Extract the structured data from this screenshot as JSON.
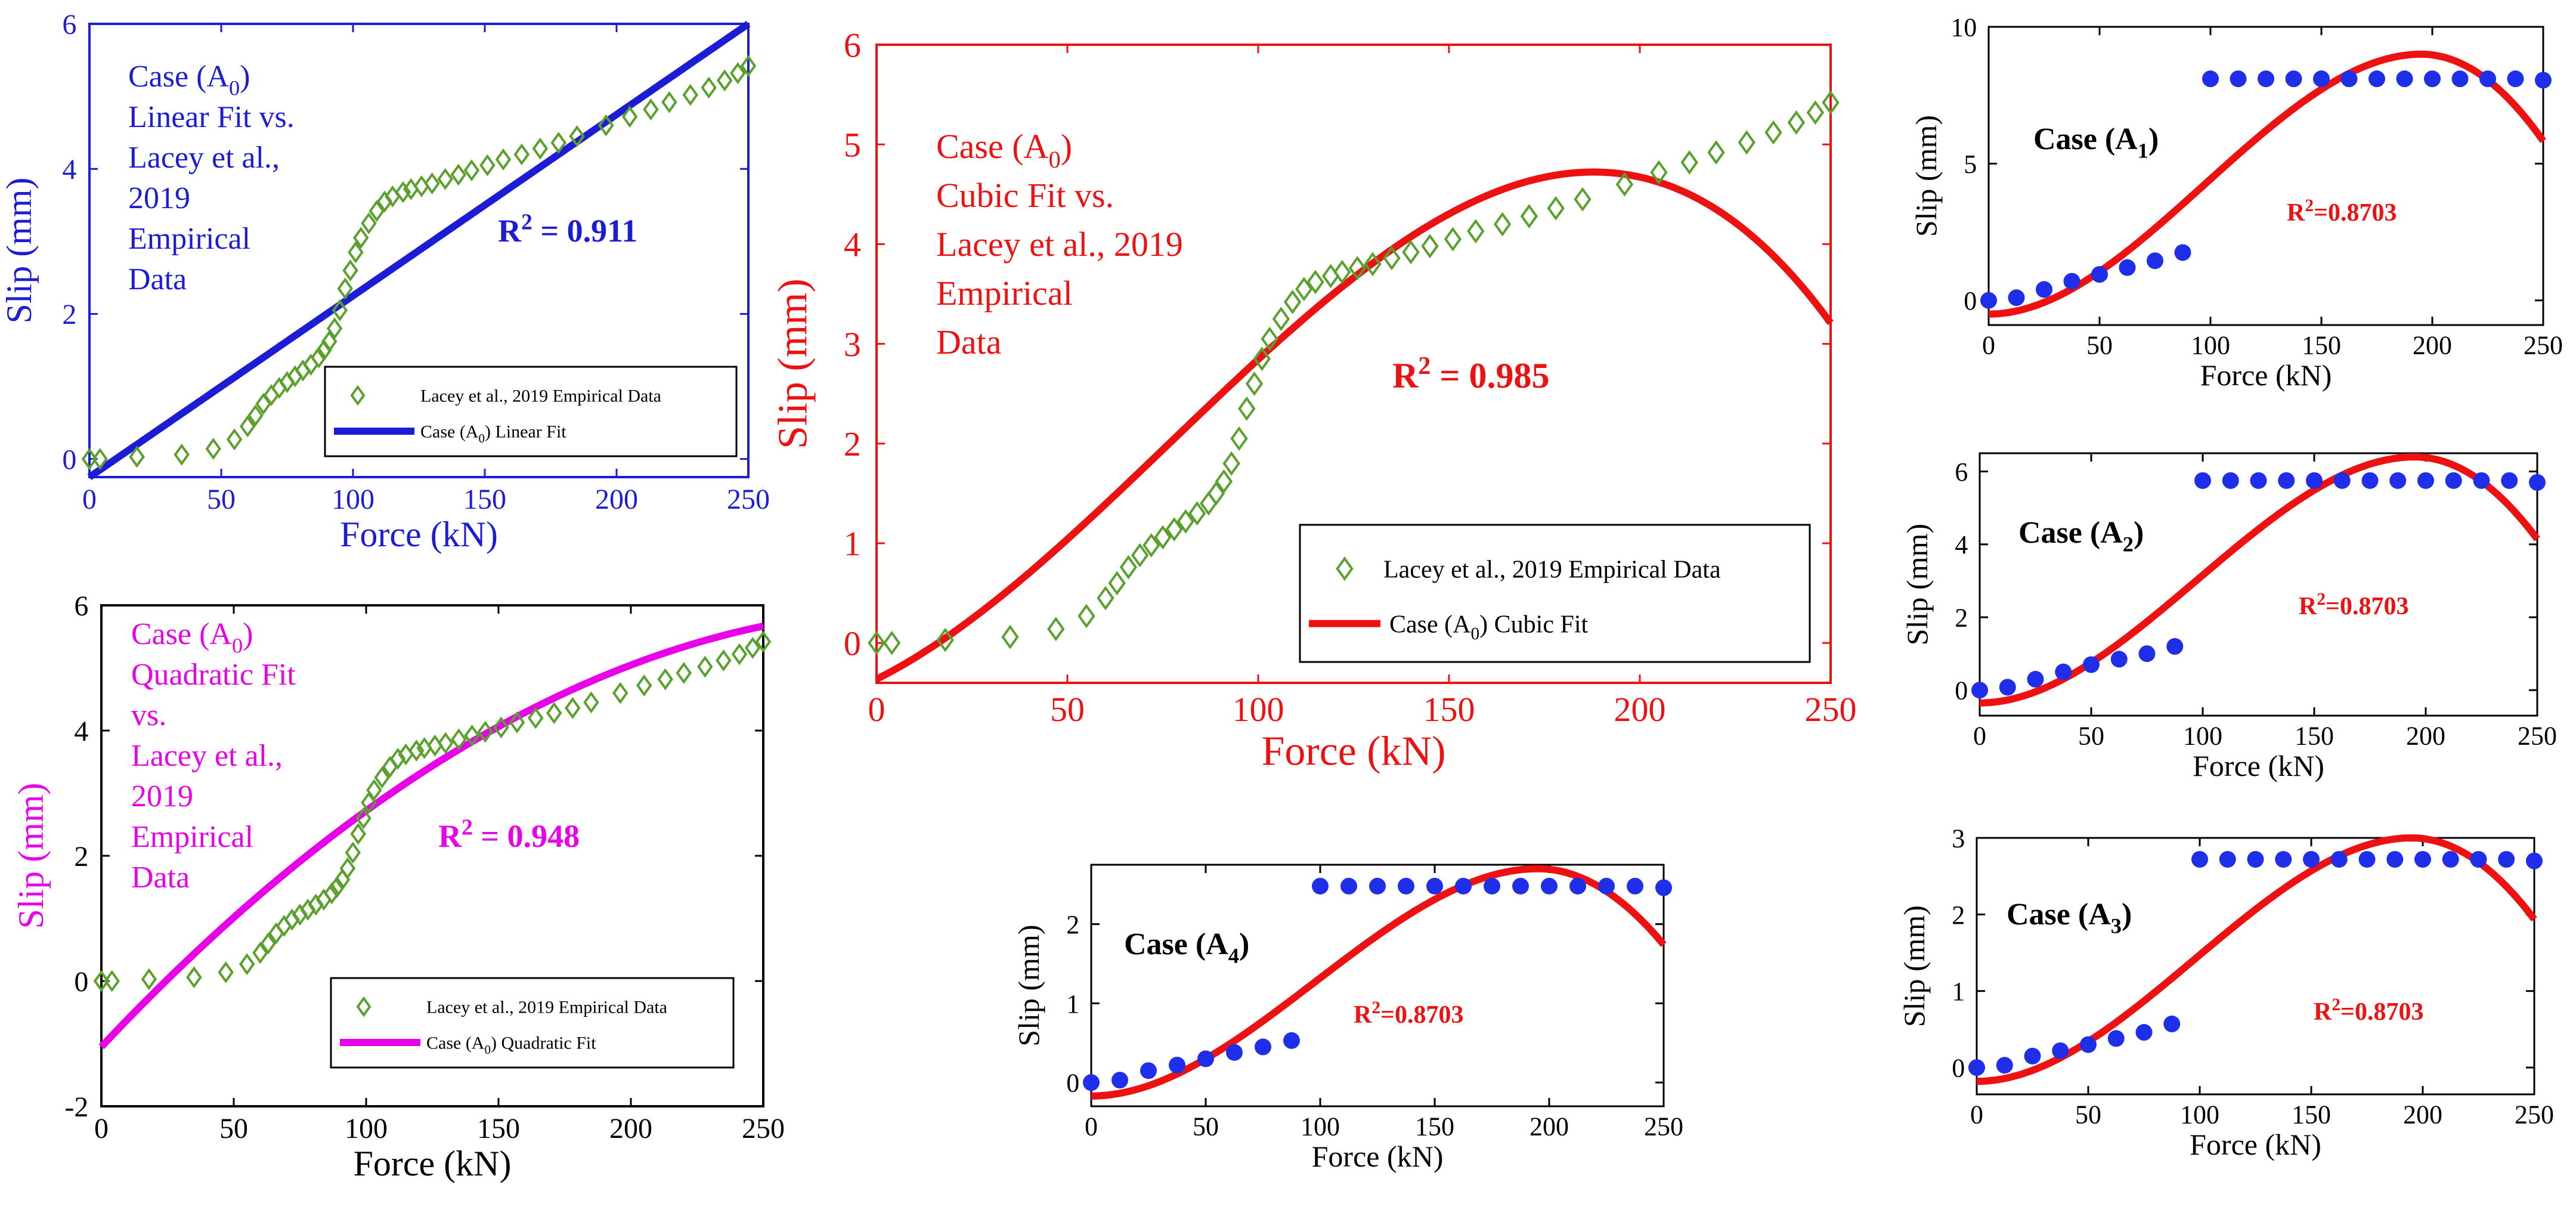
{
  "chart_data": [
    {
      "id": "linear",
      "type": "scatter+line",
      "theme": "#1c1cd6",
      "title": "",
      "xlabel": "Force (kN)",
      "ylabel": "Slip (mm)",
      "xlim": [
        0,
        250
      ],
      "ylim": [
        -0.25,
        6
      ],
      "xticks": [
        0,
        50,
        100,
        150,
        200,
        250
      ],
      "yticks": [
        0,
        2,
        4,
        6
      ],
      "annotation_lines": [
        "Case (A0)",
        "Linear Fit vs.",
        "Lacey et al.,",
        "2019",
        "Empirical",
        "Data"
      ],
      "r2_text": "R2 = 0.911",
      "legend": [
        "Lacey et al., 2019 Empirical Data",
        "Case (A0) Linear Fit"
      ],
      "fit": {
        "kind": "linear",
        "x_start": 0,
        "x_end": 250,
        "y_start": -0.25,
        "y_end": 6
      },
      "empirical": {
        "x": [
          0,
          4,
          18,
          35,
          47,
          55,
          60,
          63,
          66,
          69,
          72,
          75,
          78,
          81,
          84,
          87,
          89,
          91,
          93,
          95,
          97,
          99,
          101,
          103,
          106,
          109,
          112,
          115,
          119,
          122,
          126,
          130,
          135,
          140,
          145,
          151,
          157,
          164,
          171,
          178,
          185,
          196,
          205,
          213,
          220,
          228,
          235,
          241,
          246,
          250
        ],
        "y": [
          0,
          0,
          0.03,
          0.06,
          0.14,
          0.27,
          0.45,
          0.6,
          0.76,
          0.88,
          0.98,
          1.06,
          1.14,
          1.22,
          1.3,
          1.4,
          1.5,
          1.62,
          1.8,
          2.05,
          2.35,
          2.6,
          2.85,
          3.05,
          3.25,
          3.42,
          3.55,
          3.62,
          3.68,
          3.72,
          3.76,
          3.8,
          3.86,
          3.92,
          3.98,
          4.05,
          4.13,
          4.2,
          4.28,
          4.36,
          4.45,
          4.6,
          4.72,
          4.82,
          4.92,
          5.02,
          5.12,
          5.22,
          5.32,
          5.42
        ]
      }
    },
    {
      "id": "quadratic",
      "type": "scatter+line",
      "theme": "#e800e8",
      "title": "",
      "xlabel": "Force (kN)",
      "ylabel": "Slip (mm)",
      "xlim": [
        0,
        250
      ],
      "ylim": [
        -2,
        6
      ],
      "xticks": [
        0,
        50,
        100,
        150,
        200,
        250
      ],
      "yticks": [
        -2,
        0,
        2,
        4,
        6
      ],
      "annotation_lines": [
        "Case (A0)",
        "Quadratic Fit",
        "vs.",
        "Lacey et al.,",
        "2019",
        "Empirical",
        "Data"
      ],
      "r2_text": "R2 = 0.948",
      "legend": [
        "Lacey et al., 2019 Empirical Data",
        "Case (A0)  Quadratic Fit"
      ],
      "fit": {
        "kind": "poly",
        "coef": [
          -1.05,
          0.0449,
          -7.21e-05
        ]
      },
      "empirical": {
        "x": [
          0,
          4,
          18,
          35,
          47,
          55,
          60,
          63,
          66,
          69,
          72,
          75,
          78,
          81,
          84,
          87,
          89,
          91,
          93,
          95,
          97,
          99,
          101,
          103,
          106,
          109,
          112,
          115,
          119,
          122,
          126,
          130,
          135,
          140,
          145,
          151,
          157,
          164,
          171,
          178,
          185,
          196,
          205,
          213,
          220,
          228,
          235,
          241,
          246,
          250
        ],
        "y": [
          0,
          0,
          0.03,
          0.06,
          0.14,
          0.27,
          0.45,
          0.6,
          0.76,
          0.88,
          0.98,
          1.06,
          1.14,
          1.22,
          1.3,
          1.4,
          1.5,
          1.62,
          1.8,
          2.05,
          2.35,
          2.6,
          2.85,
          3.05,
          3.25,
          3.42,
          3.55,
          3.62,
          3.68,
          3.72,
          3.76,
          3.8,
          3.86,
          3.92,
          3.98,
          4.05,
          4.13,
          4.2,
          4.28,
          4.36,
          4.45,
          4.6,
          4.72,
          4.82,
          4.92,
          5.02,
          5.12,
          5.22,
          5.32,
          5.42
        ]
      }
    },
    {
      "id": "cubic",
      "type": "scatter+line",
      "theme": "#ee1111",
      "title": "",
      "xlabel": "Force (kN)",
      "ylabel": "Slip (mm)",
      "xlim": [
        0,
        250
      ],
      "ylim": [
        -0.4,
        6
      ],
      "xticks": [
        0,
        50,
        100,
        150,
        200,
        250
      ],
      "yticks": [
        0,
        1,
        2,
        3,
        4,
        5,
        6
      ],
      "annotation_lines": [
        "Case (A0)",
        "Cubic Fit vs.",
        "Lacey et al., 2019",
        "Empirical",
        "Data"
      ],
      "r2_text": "R2 = 0.985",
      "legend": [
        "Lacey et al., 2019 Empirical Data",
        "Case (A0)  Cubic Fit"
      ],
      "fit": {
        "kind": "poly",
        "coef": [
          -0.363,
          0.0191,
          0.000229,
          -9.93e-07
        ]
      },
      "empirical": {
        "x": [
          0,
          4,
          18,
          35,
          47,
          55,
          60,
          63,
          66,
          69,
          72,
          75,
          78,
          81,
          84,
          87,
          89,
          91,
          93,
          95,
          97,
          99,
          101,
          103,
          106,
          109,
          112,
          115,
          119,
          122,
          126,
          130,
          135,
          140,
          145,
          151,
          157,
          164,
          171,
          178,
          185,
          196,
          205,
          213,
          220,
          228,
          235,
          241,
          246,
          250
        ],
        "y": [
          0,
          0,
          0.03,
          0.06,
          0.14,
          0.27,
          0.45,
          0.6,
          0.76,
          0.88,
          0.98,
          1.06,
          1.14,
          1.22,
          1.3,
          1.4,
          1.5,
          1.62,
          1.8,
          2.05,
          2.35,
          2.6,
          2.85,
          3.05,
          3.25,
          3.42,
          3.55,
          3.62,
          3.68,
          3.72,
          3.76,
          3.8,
          3.86,
          3.92,
          3.98,
          4.05,
          4.13,
          4.2,
          4.28,
          4.36,
          4.45,
          4.6,
          4.72,
          4.82,
          4.92,
          5.02,
          5.12,
          5.22,
          5.32,
          5.42
        ]
      }
    },
    {
      "id": "a1",
      "type": "scatter+line",
      "theme": "#000000",
      "xlabel": "Force (kN)",
      "ylabel": "Slip (mm)",
      "xlim": [
        0,
        250
      ],
      "ylim": [
        -0.9,
        10
      ],
      "xticks": [
        0,
        50,
        100,
        150,
        200,
        250
      ],
      "yticks": [
        0,
        5,
        10
      ],
      "case_label": "Case (A1)",
      "r2_text": "R2=0.8703",
      "fit": {
        "kind": "cubic_norm",
        "c": 1.24,
        "peak_x": 195,
        "peak_y": 9.0,
        "start_y": -0.5
      },
      "points": {
        "x": [
          0,
          12.5,
          25,
          37.5,
          50,
          62.5,
          75,
          87.5,
          100,
          112.5,
          125,
          137.5,
          150,
          162.5,
          175,
          187.5,
          200,
          212.5,
          225,
          237.5,
          250
        ],
        "y": [
          0,
          0.1,
          0.4,
          0.7,
          0.95,
          1.2,
          1.45,
          1.75,
          8.1,
          8.1,
          8.1,
          8.1,
          8.1,
          8.1,
          8.1,
          8.1,
          8.1,
          8.1,
          8.1,
          8.1,
          8.05
        ]
      }
    },
    {
      "id": "a2",
      "type": "scatter+line",
      "theme": "#000000",
      "xlabel": "Force (kN)",
      "ylabel": "Slip (mm)",
      "xlim": [
        0,
        250
      ],
      "ylim": [
        -0.7,
        6.5
      ],
      "xticks": [
        0,
        50,
        100,
        150,
        200,
        250
      ],
      "yticks": [
        0,
        2,
        4,
        6
      ],
      "case_label": "Case (A2)",
      "r2_text": "R2=0.8703",
      "fit": {
        "kind": "cubic_norm",
        "c": 1.24,
        "peak_x": 195,
        "peak_y": 6.4,
        "start_y": -0.35
      },
      "points": {
        "x": [
          0,
          12.5,
          25,
          37.5,
          50,
          62.5,
          75,
          87.5,
          100,
          112.5,
          125,
          137.5,
          150,
          162.5,
          175,
          187.5,
          200,
          212.5,
          225,
          237.5,
          250
        ],
        "y": [
          0,
          0.08,
          0.3,
          0.5,
          0.7,
          0.85,
          1.0,
          1.2,
          5.75,
          5.75,
          5.75,
          5.75,
          5.75,
          5.75,
          5.75,
          5.75,
          5.75,
          5.75,
          5.75,
          5.75,
          5.7
        ]
      }
    },
    {
      "id": "a3",
      "type": "scatter+line",
      "theme": "#000000",
      "xlabel": "Force (kN)",
      "ylabel": "Slip (mm)",
      "xlim": [
        0,
        250
      ],
      "ylim": [
        -0.35,
        3
      ],
      "xticks": [
        0,
        50,
        100,
        150,
        200,
        250
      ],
      "yticks": [
        0,
        1,
        2,
        3
      ],
      "case_label": "Case (A3)",
      "r2_text": "R2=0.8703",
      "fit": {
        "kind": "cubic_norm",
        "c": 1.24,
        "peak_x": 195,
        "peak_y": 3.0,
        "start_y": -0.18
      },
      "points": {
        "x": [
          0,
          12.5,
          25,
          37.5,
          50,
          62.5,
          75,
          87.5,
          100,
          112.5,
          125,
          137.5,
          150,
          162.5,
          175,
          187.5,
          200,
          212.5,
          225,
          237.5,
          250
        ],
        "y": [
          0,
          0.03,
          0.15,
          0.22,
          0.3,
          0.38,
          0.46,
          0.57,
          2.72,
          2.72,
          2.72,
          2.72,
          2.72,
          2.72,
          2.72,
          2.72,
          2.72,
          2.72,
          2.72,
          2.72,
          2.7
        ]
      }
    },
    {
      "id": "a4",
      "type": "scatter+line",
      "theme": "#000000",
      "xlabel": "Force (kN)",
      "ylabel": "Slip (mm)",
      "xlim": [
        0,
        250
      ],
      "ylim": [
        -0.3,
        2.75
      ],
      "xticks": [
        0,
        50,
        100,
        150,
        200,
        250
      ],
      "yticks": [
        0,
        1,
        2
      ],
      "case_label": "Case (A4)",
      "r2_text": "R2=0.8703",
      "fit": {
        "kind": "cubic_norm",
        "c": 1.24,
        "peak_x": 195,
        "peak_y": 2.7,
        "start_y": -0.17
      },
      "points": {
        "x": [
          0,
          12.5,
          25,
          37.5,
          50,
          62.5,
          75,
          87.5,
          100,
          112.5,
          125,
          137.5,
          150,
          162.5,
          175,
          187.5,
          200,
          212.5,
          225,
          237.5,
          250
        ],
        "y": [
          0,
          0.03,
          0.15,
          0.22,
          0.3,
          0.38,
          0.45,
          0.53,
          2.48,
          2.48,
          2.48,
          2.48,
          2.48,
          2.48,
          2.48,
          2.48,
          2.48,
          2.48,
          2.48,
          2.48,
          2.46
        ]
      }
    }
  ]
}
